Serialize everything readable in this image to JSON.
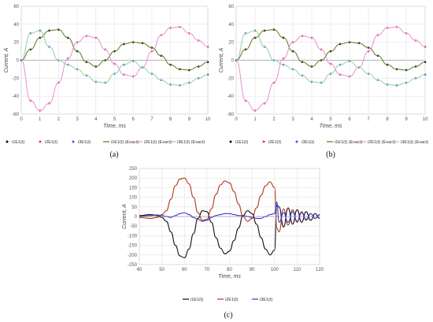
{
  "chart_data": [
    {
      "panel_label": "(a)",
      "type": "line",
      "xlabel": "Time, ms",
      "ylabel": "Current, A",
      "xlim": [
        0,
        10
      ],
      "ylim": [
        -60,
        60
      ],
      "xticks": [
        0,
        1,
        2,
        3,
        4,
        5,
        6,
        7,
        8,
        9,
        10
      ],
      "yticks": [
        -60,
        -40,
        -20,
        0,
        20,
        40,
        60
      ],
      "grid": true,
      "legend_position": "bottom",
      "x": [
        0,
        0.5,
        1,
        1.5,
        2,
        2.5,
        3,
        3.5,
        4,
        4.5,
        5,
        5.5,
        6,
        6.5,
        7,
        7.5,
        8,
        8.5,
        9,
        9.5,
        10
      ],
      "series": [
        {
          "name": "i1E1(t)",
          "style": "markers",
          "color": "#111111",
          "values": [
            0,
            12,
            25,
            33,
            34,
            25,
            10,
            -2,
            -7,
            0,
            10,
            18,
            20,
            19,
            14,
            5,
            -5,
            -10,
            -11,
            -7,
            -2
          ]
        },
        {
          "name": "i2E1(t)",
          "style": "markers",
          "color": "#d9406b",
          "values": [
            0,
            -45,
            -56,
            -48,
            -25,
            2,
            20,
            27,
            25,
            12,
            -4,
            -16,
            -18,
            -8,
            10,
            28,
            36,
            37,
            30,
            22,
            15
          ]
        },
        {
          "name": "i3E1(t)",
          "style": "markers",
          "color": "#3a63d8",
          "values": [
            0,
            30,
            33,
            15,
            0,
            -5,
            -10,
            -17,
            -24,
            -25,
            -15,
            -5,
            -1,
            -8,
            -15,
            -22,
            -27,
            -28,
            -25,
            -20,
            -16
          ]
        },
        {
          "name": "i1E1(t) (Exact)",
          "style": "line",
          "color": "#5a7a1e",
          "values": [
            0,
            12,
            25,
            33,
            34,
            25,
            10,
            -2,
            -7,
            0,
            10,
            18,
            20,
            19,
            14,
            5,
            -5,
            -10,
            -11,
            -7,
            -2
          ]
        },
        {
          "name": "i2E1(t) (Exact)",
          "style": "line",
          "color": "#e88fd2",
          "values": [
            0,
            -45,
            -56,
            -48,
            -25,
            2,
            20,
            27,
            25,
            12,
            -4,
            -16,
            -18,
            -8,
            10,
            28,
            36,
            37,
            30,
            22,
            15
          ]
        },
        {
          "name": "i3E1(t) (Exact)",
          "style": "line",
          "color": "#8fd1a0",
          "values": [
            0,
            30,
            33,
            15,
            0,
            -5,
            -10,
            -17,
            -24,
            -25,
            -15,
            -5,
            -1,
            -8,
            -15,
            -22,
            -27,
            -28,
            -25,
            -20,
            -16
          ]
        }
      ]
    },
    {
      "panel_label": "(b)",
      "type": "line",
      "xlabel": "Time, ms",
      "ylabel": "Current, A",
      "xlim": [
        0,
        10
      ],
      "ylim": [
        -60,
        60
      ],
      "xticks": [
        0,
        1,
        2,
        3,
        4,
        5,
        6,
        7,
        8,
        9,
        10
      ],
      "yticks": [
        -60,
        -40,
        -20,
        0,
        20,
        40,
        60
      ],
      "grid": true,
      "legend_position": "bottom",
      "x": [
        0,
        0.5,
        1,
        1.5,
        2,
        2.5,
        3,
        3.5,
        4,
        4.5,
        5,
        5.5,
        6,
        6.5,
        7,
        7.5,
        8,
        8.5,
        9,
        9.5,
        10
      ],
      "series": [
        {
          "name": "i1E1(t)",
          "style": "markers",
          "color": "#111111",
          "values": [
            0,
            12,
            25,
            33,
            34,
            25,
            10,
            -2,
            -7,
            0,
            10,
            18,
            20,
            19,
            14,
            5,
            -5,
            -10,
            -11,
            -7,
            -2
          ]
        },
        {
          "name": "i2E1(t)",
          "style": "markers",
          "color": "#d9406b",
          "values": [
            0,
            -45,
            -56,
            -48,
            -25,
            2,
            20,
            27,
            25,
            12,
            -4,
            -16,
            -18,
            -8,
            10,
            28,
            36,
            37,
            30,
            22,
            15
          ]
        },
        {
          "name": "i3E1(t)",
          "style": "markers",
          "color": "#3a63d8",
          "values": [
            0,
            30,
            33,
            15,
            0,
            -5,
            -10,
            -17,
            -24,
            -25,
            -15,
            -5,
            -1,
            -8,
            -15,
            -22,
            -27,
            -28,
            -25,
            -20,
            -16
          ]
        },
        {
          "name": "i1E1(t) (Exact)",
          "style": "line",
          "color": "#5a7a1e",
          "values": [
            0,
            12,
            25,
            33,
            34,
            25,
            10,
            -2,
            -7,
            0,
            10,
            18,
            20,
            19,
            14,
            5,
            -5,
            -10,
            -11,
            -7,
            -2
          ]
        },
        {
          "name": "i2E1(t) (Exact)",
          "style": "line",
          "color": "#e88fd2",
          "values": [
            0,
            -45,
            -56,
            -48,
            -25,
            2,
            20,
            27,
            25,
            12,
            -4,
            -16,
            -18,
            -8,
            10,
            28,
            36,
            37,
            30,
            22,
            15
          ]
        },
        {
          "name": "i3E1(t) (Exact)",
          "style": "line",
          "color": "#8fd1a0",
          "values": [
            0,
            30,
            33,
            15,
            0,
            -5,
            -10,
            -17,
            -24,
            -25,
            -15,
            -5,
            -1,
            -8,
            -15,
            -22,
            -27,
            -28,
            -25,
            -20,
            -16
          ]
        }
      ]
    },
    {
      "panel_label": "(c)",
      "type": "line",
      "xlabel": "Time, ms",
      "ylabel": "Current, A",
      "xlim": [
        40,
        120
      ],
      "ylim": [
        -250,
        250
      ],
      "xticks": [
        40,
        50,
        60,
        70,
        80,
        90,
        100,
        110,
        120
      ],
      "yticks": [
        -250,
        -200,
        -150,
        -100,
        -50,
        0,
        50,
        100,
        150,
        200,
        250
      ],
      "grid": true,
      "legend_position": "bottom",
      "x": [
        40,
        45,
        48,
        50,
        52,
        54,
        56,
        58,
        60,
        62,
        64,
        66,
        68,
        70,
        72,
        74,
        76,
        78,
        80,
        82,
        84,
        86,
        88,
        90,
        92,
        94,
        96,
        98,
        100,
        101,
        102,
        104,
        106,
        108,
        110,
        112,
        114,
        116,
        118,
        120
      ],
      "series": [
        {
          "name": "i1E1(t)",
          "style": "line",
          "color": "#111111",
          "values": [
            5,
            10,
            5,
            -5,
            -25,
            -80,
            -150,
            -205,
            -215,
            -170,
            -90,
            -10,
            30,
            25,
            -30,
            -110,
            -165,
            -195,
            -180,
            -125,
            -60,
            5,
            30,
            15,
            -40,
            -110,
            -170,
            -200,
            -175,
            60,
            50,
            -55,
            45,
            -40,
            35,
            -30,
            25,
            -20,
            15,
            -10
          ]
        },
        {
          "name": "i2E1(t)",
          "style": "line",
          "color": "#b5371a",
          "values": [
            -5,
            -10,
            -5,
            10,
            30,
            90,
            160,
            195,
            200,
            170,
            100,
            20,
            -20,
            -15,
            40,
            115,
            165,
            185,
            175,
            130,
            65,
            0,
            -25,
            -10,
            45,
            110,
            160,
            180,
            150,
            -60,
            -80,
            40,
            -45,
            35,
            -30,
            25,
            -20,
            15,
            -10,
            8
          ]
        },
        {
          "name": "i3E1(t)",
          "style": "line",
          "color": "#3a3ad8",
          "values": [
            0,
            5,
            8,
            5,
            0,
            -5,
            5,
            15,
            20,
            10,
            -5,
            -15,
            -25,
            -20,
            -5,
            5,
            10,
            15,
            15,
            10,
            5,
            5,
            0,
            -5,
            -10,
            -10,
            0,
            10,
            15,
            75,
            -30,
            20,
            -30,
            25,
            -25,
            20,
            -15,
            15,
            -10,
            10
          ]
        }
      ]
    }
  ]
}
